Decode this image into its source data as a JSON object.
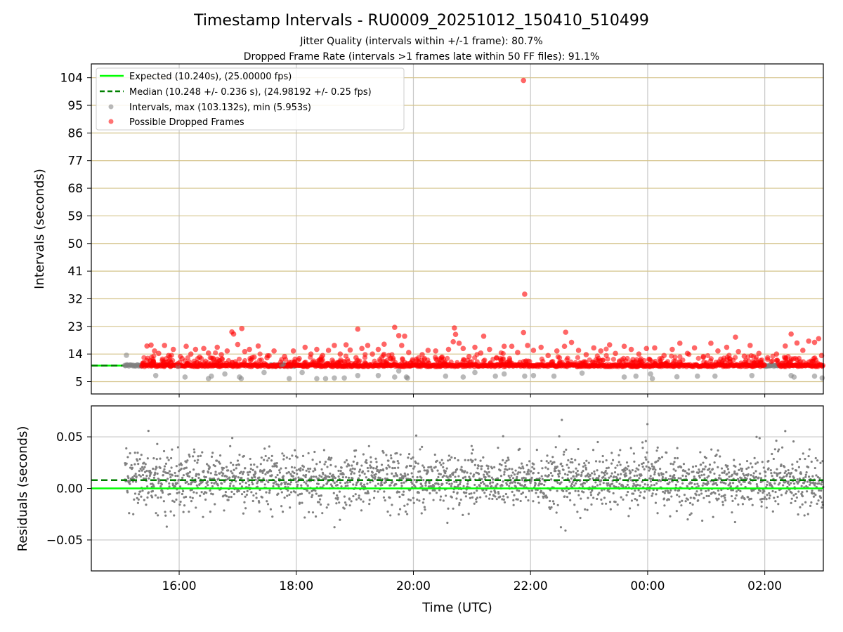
{
  "chart_data": [
    {
      "type": "scatter",
      "panel": "intervals",
      "title": "Timestamp Intervals - RU0009_20251012_150410_510499",
      "subtitle_lines": [
        "Jitter Quality (intervals within +/-1 frame): 80.7%",
        "Dropped Frame Rate (intervals >1 frames late within 50 FF files): 91.1%"
      ],
      "ylabel": "Intervals (seconds)",
      "xlabel": "",
      "ylim": [
        1.0,
        108.5
      ],
      "yticks": [
        5,
        14,
        23,
        32,
        41,
        50,
        59,
        68,
        77,
        86,
        95,
        104
      ],
      "ytick_labels": [
        "5",
        "14",
        "23",
        "32",
        "41",
        "50",
        "59",
        "68",
        "77",
        "86",
        "95",
        "104"
      ],
      "xlim_hours": [
        14.5,
        27.0
      ],
      "grid": "on",
      "legend_position": "upper-left",
      "legend": [
        {
          "label": "Expected (10.240s), (25.00000 fps)",
          "kind": "line",
          "style": "solid",
          "color": "#00ff00"
        },
        {
          "label": "Median (10.248 +/- 0.236 s), (24.98192 +/- 0.25 fps)",
          "kind": "line",
          "style": "dashed",
          "color": "#008000"
        },
        {
          "label": "Intervals, max (103.132s), min (5.953s)",
          "kind": "marker",
          "color": "#808080"
        },
        {
          "label": "Possible Dropped Frames",
          "kind": "marker",
          "color": "#ff0000"
        }
      ],
      "expected_value": 10.24,
      "median_value": 10.248,
      "data_start_hour": 15.07,
      "data_end_hour": 27.0,
      "baseline_red_segments": [
        [
          15.36,
          17.95
        ],
        [
          17.98,
          26.0
        ],
        [
          26.25,
          27.0
        ]
      ],
      "baseline_gray_segments": [
        [
          15.07,
          15.36
        ],
        [
          17.55,
          17.98
        ],
        [
          26.0,
          26.25
        ]
      ],
      "series": [
        {
          "name": "Possible Dropped Frames",
          "color": "#ff0000",
          "points": [
            [
              21.88,
              103.1
            ],
            [
              21.9,
              33.5
            ],
            [
              21.88,
              21.0
            ],
            [
              17.07,
              22.3
            ],
            [
              16.9,
              21.2
            ],
            [
              16.93,
              20.5
            ],
            [
              19.68,
              22.7
            ],
            [
              19.05,
              22.1
            ],
            [
              20.7,
              22.5
            ],
            [
              22.6,
              21.1
            ],
            [
              21.2,
              19.8
            ],
            [
              20.72,
              20.4
            ],
            [
              15.45,
              16.6
            ],
            [
              15.52,
              16.9
            ],
            [
              15.58,
              15.0
            ],
            [
              15.65,
              14.2
            ],
            [
              15.75,
              16.8
            ],
            [
              15.82,
              13.5
            ],
            [
              15.9,
              15.5
            ],
            [
              16.05,
              12.5
            ],
            [
              16.12,
              16.5
            ],
            [
              16.2,
              14.0
            ],
            [
              16.28,
              15.5
            ],
            [
              16.35,
              13.0
            ],
            [
              16.42,
              15.8
            ],
            [
              16.5,
              14.3
            ],
            [
              16.58,
              12.6
            ],
            [
              16.65,
              16.2
            ],
            [
              16.72,
              13.8
            ],
            [
              16.82,
              15.0
            ],
            [
              17.0,
              17.1
            ],
            [
              17.12,
              14.8
            ],
            [
              17.2,
              15.5
            ],
            [
              17.28,
              13.0
            ],
            [
              17.35,
              16.6
            ],
            [
              17.5,
              12.8
            ],
            [
              17.62,
              15.0
            ],
            [
              17.8,
              13.2
            ],
            [
              17.95,
              15.0
            ],
            [
              18.05,
              12.5
            ],
            [
              18.15,
              16.2
            ],
            [
              18.25,
              14.0
            ],
            [
              18.35,
              15.5
            ],
            [
              18.45,
              13.5
            ],
            [
              18.55,
              15.2
            ],
            [
              18.65,
              16.8
            ],
            [
              18.75,
              14.0
            ],
            [
              18.85,
              17.0
            ],
            [
              18.92,
              15.3
            ],
            [
              19.02,
              12.8
            ],
            [
              19.12,
              15.8
            ],
            [
              19.22,
              16.8
            ],
            [
              19.3,
              14.0
            ],
            [
              19.4,
              15.5
            ],
            [
              19.5,
              17.2
            ],
            [
              19.58,
              13.5
            ],
            [
              19.75,
              20.0
            ],
            [
              19.8,
              16.8
            ],
            [
              19.85,
              19.8
            ],
            [
              19.92,
              14.5
            ],
            [
              20.05,
              12.3
            ],
            [
              20.15,
              13.8
            ],
            [
              20.25,
              15.2
            ],
            [
              20.38,
              15.0
            ],
            [
              20.48,
              12.8
            ],
            [
              20.6,
              15.5
            ],
            [
              20.68,
              18.0
            ],
            [
              20.78,
              17.5
            ],
            [
              20.85,
              15.8
            ],
            [
              20.95,
              13.2
            ],
            [
              21.05,
              16.2
            ],
            [
              21.15,
              14.3
            ],
            [
              21.3,
              15.5
            ],
            [
              21.42,
              12.8
            ],
            [
              21.55,
              16.5
            ],
            [
              21.68,
              16.5
            ],
            [
              21.78,
              14.5
            ],
            [
              21.95,
              16.8
            ],
            [
              22.05,
              15.2
            ],
            [
              22.18,
              16.2
            ],
            [
              22.3,
              13.5
            ],
            [
              22.45,
              15.0
            ],
            [
              22.58,
              16.5
            ],
            [
              22.7,
              17.8
            ],
            [
              22.82,
              15.2
            ],
            [
              22.95,
              13.8
            ],
            [
              23.08,
              16.0
            ],
            [
              23.2,
              15.0
            ],
            [
              23.35,
              17.0
            ],
            [
              23.45,
              14.2
            ],
            [
              23.6,
              16.5
            ],
            [
              23.72,
              15.5
            ],
            [
              23.85,
              14.0
            ],
            [
              23.98,
              15.8
            ],
            [
              24.12,
              16.0
            ],
            [
              24.28,
              13.5
            ],
            [
              24.42,
              15.5
            ],
            [
              24.55,
              17.5
            ],
            [
              24.68,
              14.2
            ],
            [
              24.8,
              16.0
            ],
            [
              24.95,
              13.2
            ],
            [
              25.08,
              17.5
            ],
            [
              25.2,
              15.0
            ],
            [
              25.35,
              16.2
            ],
            [
              25.5,
              19.5
            ],
            [
              25.55,
              14.8
            ],
            [
              25.65,
              13.3
            ],
            [
              25.75,
              16.8
            ],
            [
              25.9,
              14.2
            ],
            [
              26.05,
              12.8
            ],
            [
              26.2,
              14.0
            ],
            [
              26.35,
              16.6
            ],
            [
              26.45,
              20.5
            ],
            [
              26.55,
              17.6
            ],
            [
              26.65,
              15.2
            ],
            [
              26.75,
              18.2
            ],
            [
              26.85,
              17.8
            ],
            [
              26.92,
              19.0
            ],
            [
              26.97,
              13.5
            ]
          ]
        },
        {
          "name": "Intervals, max (103.132s), min (5.953s)",
          "color": "#808080",
          "points": [
            [
              15.1,
              13.6
            ],
            [
              15.6,
              7.0
            ],
            [
              15.98,
              10.0
            ],
            [
              16.1,
              6.5
            ],
            [
              16.5,
              6.0
            ],
            [
              16.55,
              6.8
            ],
            [
              16.78,
              7.5
            ],
            [
              17.03,
              6.5
            ],
            [
              17.06,
              6.0
            ],
            [
              17.45,
              8.0
            ],
            [
              17.75,
              10.5
            ],
            [
              17.78,
              10.8
            ],
            [
              17.88,
              6.0
            ],
            [
              18.1,
              8.0
            ],
            [
              18.35,
              6.0
            ],
            [
              18.5,
              6.0
            ],
            [
              18.65,
              6.2
            ],
            [
              18.82,
              6.2
            ],
            [
              19.05,
              7.0
            ],
            [
              19.4,
              7.0
            ],
            [
              19.68,
              6.5
            ],
            [
              19.75,
              8.5
            ],
            [
              19.88,
              6.5
            ],
            [
              19.9,
              6.2
            ],
            [
              20.55,
              6.8
            ],
            [
              20.85,
              6.5
            ],
            [
              21.05,
              8.0
            ],
            [
              21.4,
              6.8
            ],
            [
              21.55,
              7.5
            ],
            [
              21.9,
              6.8
            ],
            [
              22.05,
              7.0
            ],
            [
              22.4,
              6.8
            ],
            [
              22.88,
              7.8
            ],
            [
              23.6,
              6.5
            ],
            [
              23.8,
              6.8
            ],
            [
              24.05,
              7.5
            ],
            [
              24.08,
              6.0
            ],
            [
              24.5,
              6.6
            ],
            [
              24.85,
              6.8
            ],
            [
              25.15,
              6.8
            ],
            [
              25.78,
              7.0
            ],
            [
              26.1,
              10.2
            ],
            [
              26.45,
              7.0
            ],
            [
              26.5,
              6.5
            ],
            [
              26.85,
              6.8
            ],
            [
              26.98,
              6.2
            ]
          ]
        }
      ]
    },
    {
      "type": "scatter",
      "panel": "residuals",
      "title": "",
      "ylabel": "Residuals (seconds)",
      "xlabel": "Time (UTC)",
      "ylim": [
        -0.08,
        0.08
      ],
      "yticks": [
        -0.05,
        0.0,
        0.05
      ],
      "ytick_labels": [
        "−0.05",
        "0.00",
        "0.05"
      ],
      "xlim_hours": [
        14.5,
        27.0
      ],
      "xticks_hours": [
        16,
        18,
        20,
        22,
        24,
        26
      ],
      "xtick_labels": [
        "16:00",
        "18:00",
        "20:00",
        "22:00",
        "00:00",
        "02:00"
      ],
      "grid": "on",
      "expected_value": 0.0,
      "median_value": 0.008,
      "residual_spread_sd": 0.013,
      "series": [
        {
          "name": "",
          "color": "#808080",
          "description_count": 2400
        }
      ]
    }
  ],
  "colors": {
    "dropped": "#ff0000",
    "intervals": "#808080",
    "expected": "#00ff00",
    "median": "#008000",
    "ygrid_top": "#d4c38a",
    "grid": "#c8c8c8"
  }
}
